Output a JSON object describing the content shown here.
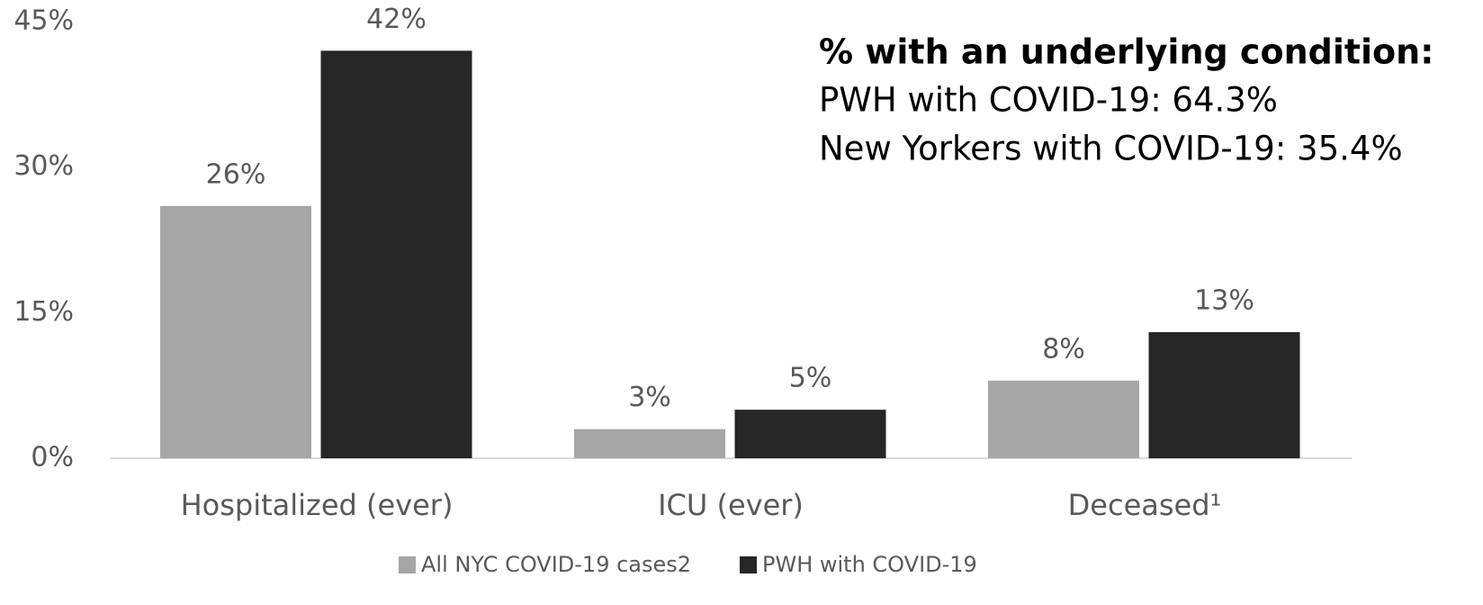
{
  "chart_data": {
    "type": "bar",
    "categories": [
      "Hospitalized (ever)",
      "ICU (ever)",
      "Deceased¹"
    ],
    "series": [
      {
        "name": "All NYC COVID-19 cases2",
        "color": "#a6a6a6",
        "values": [
          26,
          3,
          8
        ],
        "value_labels": [
          "26%",
          "3%",
          "8%"
        ]
      },
      {
        "name": "PWH with COVID-19",
        "color": "#262626",
        "values": [
          42,
          5,
          13
        ],
        "value_labels": [
          "42%",
          "5%",
          "13%"
        ]
      }
    ],
    "ylim": [
      0,
      45
    ],
    "yticks": [
      {
        "value": 0,
        "label": "0%"
      },
      {
        "value": 15,
        "label": "15%"
      },
      {
        "value": 30,
        "label": "30%"
      },
      {
        "value": 45,
        "label": "45%"
      }
    ],
    "grid": false,
    "legend": "bottom",
    "annotations": [
      "% with an underlying condition:",
      "PWH with COVID-19: 64.3%",
      "New Yorkers with COVID-19: 35.4%"
    ]
  }
}
